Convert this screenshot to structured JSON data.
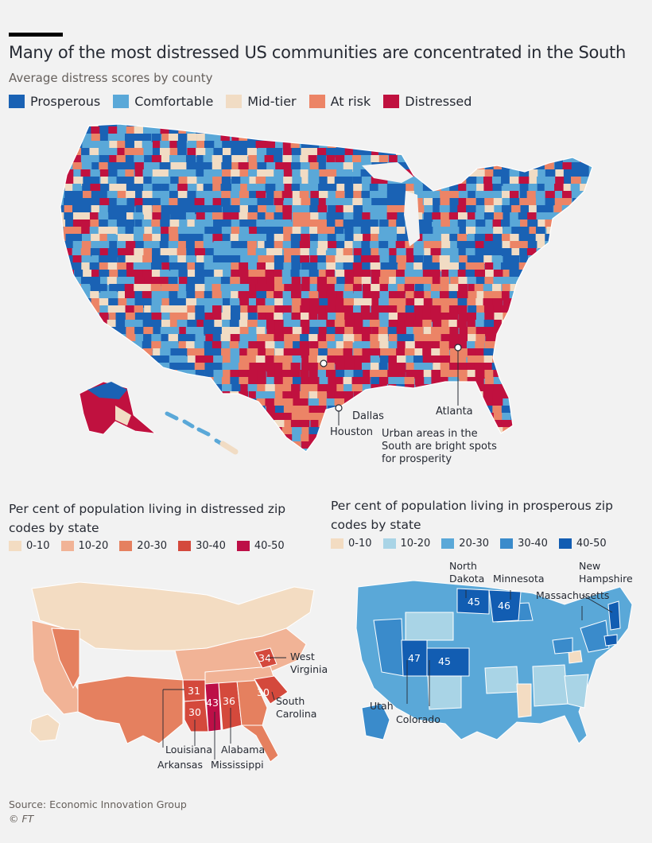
{
  "header": {
    "title": "Many of the most distressed US communities are concentrated in the South",
    "subtitle": "Average distress scores by county"
  },
  "colors": {
    "prosperous": "#1a62b4",
    "comfortable": "#5aa8d8",
    "mid_tier": "#f1dcc4",
    "at_risk": "#ec8466",
    "distressed": "#c0113f",
    "red_scale": [
      "#f3dcc2",
      "#f1b396",
      "#e5805f",
      "#d4493c",
      "#bd0f47"
    ],
    "blue_scale": [
      "#f3dcc2",
      "#a9d4e6",
      "#5aa8d8",
      "#3a8bcb",
      "#125db2"
    ]
  },
  "main_legend": [
    "Prosperous",
    "Comfortable",
    "Mid-tier",
    "At risk",
    "Distressed"
  ],
  "main_map": {
    "cities": [
      "Dallas",
      "Houston",
      "Atlanta"
    ],
    "note": [
      "Urban areas in the",
      "South are bright spots",
      "for prosperity"
    ]
  },
  "left_panel": {
    "heading": [
      "Per cent of population living in distressed zip",
      "codes by state"
    ],
    "legend": [
      "0-10",
      "10-20",
      "20-30",
      "30-40",
      "40-50"
    ],
    "values": [
      {
        "state": "West Virginia",
        "value": "34"
      },
      {
        "state": "Arkansas",
        "value": "31"
      },
      {
        "state": "Louisiana",
        "value": "30"
      },
      {
        "state": "Mississippi",
        "value": "43"
      },
      {
        "state": "Alabama",
        "value": "36"
      },
      {
        "state": "South Carolina",
        "value": "30"
      }
    ],
    "labels": {
      "west_virginia": [
        "West",
        "Virginia"
      ],
      "south_carolina": [
        "South",
        "Carolina"
      ],
      "louisiana": "Louisiana",
      "alabama": "Alabama",
      "arkansas": "Arkansas",
      "mississippi": "Mississippi"
    }
  },
  "right_panel": {
    "heading": [
      "Per cent of population living in prosperous zip",
      "codes by state"
    ],
    "legend": [
      "0-10",
      "10-20",
      "20-30",
      "30-40",
      "40-50"
    ],
    "values": [
      {
        "state": "North Dakota",
        "value": "45"
      },
      {
        "state": "Minnesota",
        "value": "46"
      },
      {
        "state": "Utah",
        "value": "47"
      },
      {
        "state": "Colorado",
        "value": "45"
      }
    ],
    "labels": {
      "north_dakota": [
        "North",
        "Dakota"
      ],
      "minnesota": "Minnesota",
      "new_hampshire": [
        "New",
        "Hampshire"
      ],
      "massachusetts": "Massachusetts",
      "utah": "Utah",
      "colorado": "Colorado"
    }
  },
  "footer": {
    "source": "Source: Economic Innovation Group",
    "credit": "© FT"
  }
}
